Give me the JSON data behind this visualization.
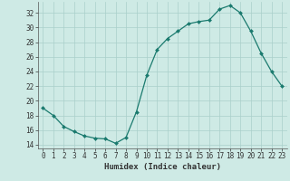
{
  "x": [
    0,
    1,
    2,
    3,
    4,
    5,
    6,
    7,
    8,
    9,
    10,
    11,
    12,
    13,
    14,
    15,
    16,
    17,
    18,
    19,
    20,
    21,
    22,
    23
  ],
  "y": [
    19.0,
    18.0,
    16.5,
    15.8,
    15.2,
    14.9,
    14.8,
    14.2,
    15.0,
    18.5,
    23.5,
    27.0,
    28.5,
    29.5,
    30.5,
    30.8,
    31.0,
    32.5,
    33.0,
    32.0,
    29.5,
    26.5,
    24.0,
    22.0
  ],
  "line_color": "#1a7a6e",
  "marker": "D",
  "marker_size": 2.0,
  "line_width": 0.9,
  "bg_color": "#ceeae5",
  "grid_color": "#aacfca",
  "xlabel": "Humidex (Indice chaleur)",
  "xlim": [
    -0.5,
    23.5
  ],
  "ylim": [
    13.5,
    33.5
  ],
  "yticks": [
    14,
    16,
    18,
    20,
    22,
    24,
    26,
    28,
    30,
    32
  ],
  "xticks": [
    0,
    1,
    2,
    3,
    4,
    5,
    6,
    7,
    8,
    9,
    10,
    11,
    12,
    13,
    14,
    15,
    16,
    17,
    18,
    19,
    20,
    21,
    22,
    23
  ],
  "tick_fontsize": 5.5,
  "label_fontsize": 6.5
}
